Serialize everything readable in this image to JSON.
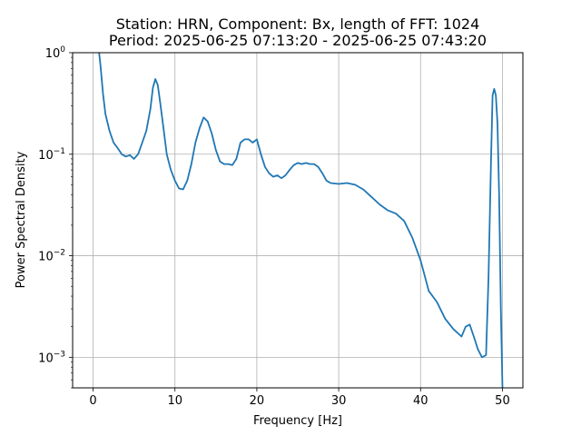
{
  "chart_data": {
    "type": "line",
    "title_line1": "Station: HRN, Component: Bx, length of FFT: 1024",
    "title_line2": "Period: 2025-06-25 07:13:20 - 2025-06-25 07:43:20",
    "xlabel": "Frequency [Hz]",
    "ylabel": "Power Spectral Density",
    "xlim": [
      -2.5,
      52.5
    ],
    "ylim": [
      0.0005,
      1
    ],
    "yscale": "log",
    "grid": true,
    "line_color": "#1f77b4",
    "x_ticks": [
      {
        "value": 0,
        "label": "0"
      },
      {
        "value": 10,
        "label": "10"
      },
      {
        "value": 20,
        "label": "20"
      },
      {
        "value": 30,
        "label": "30"
      },
      {
        "value": 40,
        "label": "40"
      },
      {
        "value": 50,
        "label": "50"
      }
    ],
    "y_ticks": [
      {
        "value": 0.001,
        "base": "10",
        "exp": "−3"
      },
      {
        "value": 0.01,
        "base": "10",
        "exp": "−2"
      },
      {
        "value": 0.1,
        "base": "10",
        "exp": "−1"
      },
      {
        "value": 1,
        "base": "10",
        "exp": "0"
      }
    ],
    "series": [
      {
        "x": [
          0.7,
          0.9,
          1.2,
          1.5,
          2.0,
          2.5,
          3.0,
          3.5,
          4.0,
          4.5,
          5.0,
          5.5,
          6.0,
          6.5,
          7.0,
          7.3,
          7.6,
          7.9,
          8.2,
          8.6,
          9.0,
          9.5,
          10.0,
          10.5,
          11.0,
          11.5,
          12.0,
          12.5,
          13.0,
          13.5,
          14.0,
          14.5,
          15.0,
          15.5,
          16.0,
          16.5,
          17.0,
          17.5,
          18.0,
          18.5,
          19.0,
          19.5,
          20.0,
          20.5,
          21.0,
          21.5,
          22.0,
          22.5,
          23.0,
          23.5,
          24.0,
          24.5,
          25.0,
          25.5,
          26.0,
          26.5,
          27.0,
          27.5,
          28.0,
          28.5,
          29.0,
          30.0,
          31.0,
          32.0,
          33.0,
          34.0,
          35.0,
          36.0,
          37.0,
          38.0,
          39.0,
          40.0,
          41.0,
          42.0,
          43.0,
          44.0,
          45.0,
          45.5,
          46.0,
          46.5,
          47.0,
          47.5,
          48.0,
          48.3,
          48.6,
          48.8,
          49.0,
          49.2,
          49.4,
          49.6,
          49.8,
          50.0
        ],
        "y": [
          1.05,
          0.75,
          0.4,
          0.25,
          0.17,
          0.13,
          0.115,
          0.1,
          0.095,
          0.098,
          0.09,
          0.1,
          0.13,
          0.17,
          0.28,
          0.45,
          0.55,
          0.48,
          0.32,
          0.18,
          0.1,
          0.07,
          0.055,
          0.046,
          0.045,
          0.055,
          0.08,
          0.13,
          0.18,
          0.23,
          0.21,
          0.16,
          0.11,
          0.085,
          0.08,
          0.08,
          0.078,
          0.09,
          0.13,
          0.14,
          0.14,
          0.13,
          0.14,
          0.1,
          0.075,
          0.065,
          0.06,
          0.062,
          0.058,
          0.062,
          0.07,
          0.078,
          0.082,
          0.08,
          0.082,
          0.08,
          0.08,
          0.075,
          0.065,
          0.055,
          0.052,
          0.051,
          0.052,
          0.05,
          0.045,
          0.038,
          0.032,
          0.028,
          0.026,
          0.022,
          0.015,
          0.009,
          0.0045,
          0.0035,
          0.0024,
          0.0019,
          0.0016,
          0.002,
          0.0021,
          0.0016,
          0.0012,
          0.001,
          0.00105,
          0.006,
          0.08,
          0.38,
          0.44,
          0.38,
          0.2,
          0.04,
          0.003,
          0.0005
        ]
      }
    ]
  }
}
